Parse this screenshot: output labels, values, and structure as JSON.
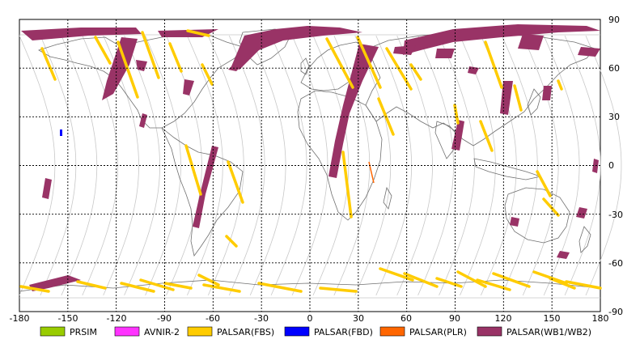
{
  "map": {
    "lon_ticks": [
      "-180",
      "-150",
      "-120",
      "-90",
      "-60",
      "-30",
      "0",
      "30",
      "60",
      "90",
      "120",
      "150",
      "180"
    ],
    "lat_ticks": [
      "90",
      "60",
      "30",
      "0",
      "-30",
      "-60",
      "-90"
    ],
    "grid": true
  },
  "legend": [
    {
      "label": "PRSIM",
      "color": "#99cc00"
    },
    {
      "label": "AVNIR-2",
      "color": "#ff33ff"
    },
    {
      "label": "PALSAR(FBS)",
      "color": "#ffcc00"
    },
    {
      "label": "PALSAR(FBD)",
      "color": "#0000ff"
    },
    {
      "label": "PALSAR(PLR)",
      "color": "#ff6600"
    },
    {
      "label": "PALSAR(WB1/WB2)",
      "color": "#993366"
    }
  ],
  "colors": {
    "wb": "#993366",
    "fbs": "#ffcc00",
    "fbd": "#0000ff",
    "plr": "#ff6600",
    "orbit": "#c8c8c8",
    "coast": "#707070"
  }
}
